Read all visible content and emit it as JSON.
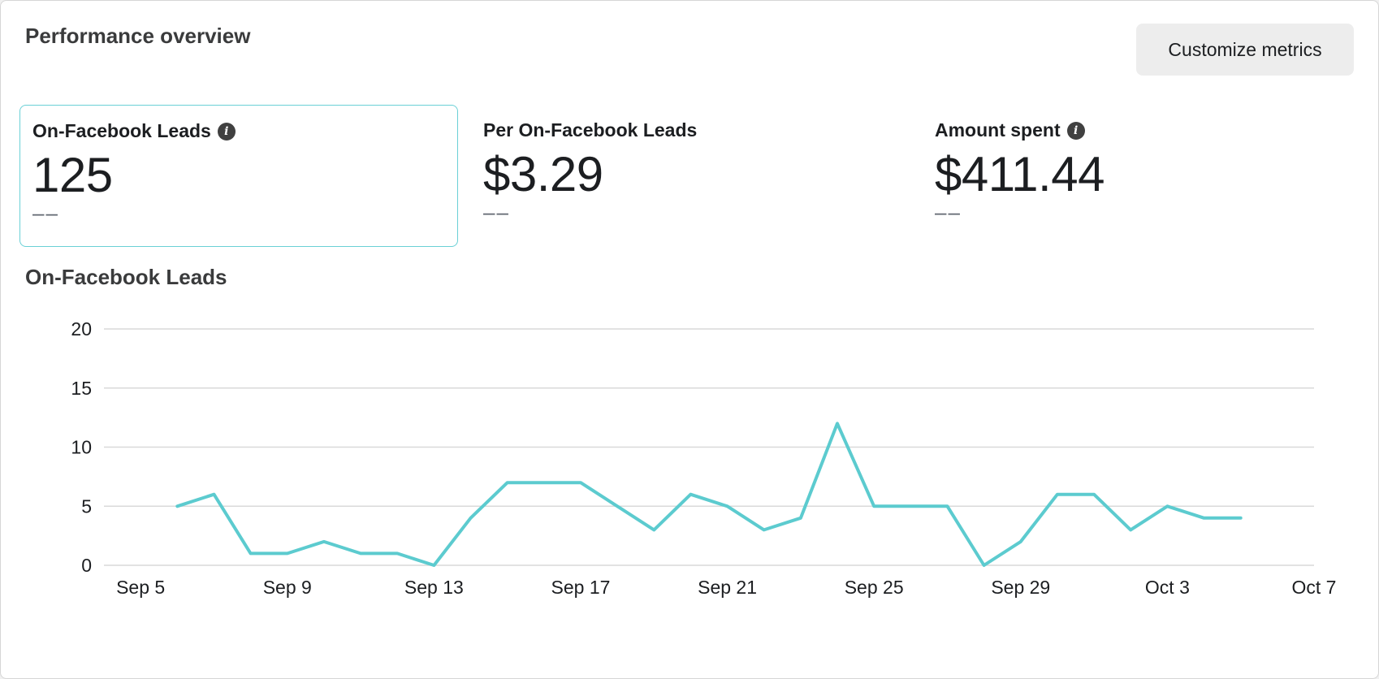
{
  "header": {
    "title": "Performance overview",
    "customize_label": "Customize metrics"
  },
  "metrics": [
    {
      "label": "On-Facebook Leads",
      "value": "125",
      "delta": "––",
      "info_icon": "info-icon",
      "selected": true
    },
    {
      "label": "Per On-Facebook Leads",
      "value": "$3.29",
      "delta": "––",
      "selected": false
    },
    {
      "label": "Amount spent",
      "value": "$411.44",
      "delta": "––",
      "info_icon": "info-icon",
      "selected": false
    }
  ],
  "chart_data": {
    "type": "line",
    "title": "On-Facebook Leads",
    "series_color": "#5ccbcf",
    "ylim": [
      0,
      20
    ],
    "yticks": [
      "0",
      "5",
      "10",
      "15",
      "20"
    ],
    "xtick_labels": [
      "Sep 5",
      "Sep 9",
      "Sep 13",
      "Sep 17",
      "Sep 21",
      "Sep 25",
      "Sep 29",
      "Oct 3",
      "Oct 7"
    ],
    "grid": true,
    "x": [
      "Sep 6",
      "Sep 7",
      "Sep 8",
      "Sep 9",
      "Sep 10",
      "Sep 11",
      "Sep 12",
      "Sep 13",
      "Sep 14",
      "Sep 15",
      "Sep 16",
      "Sep 17",
      "Sep 18",
      "Sep 19",
      "Sep 20",
      "Sep 21",
      "Sep 22",
      "Sep 23",
      "Sep 24",
      "Sep 25",
      "Sep 26",
      "Sep 27",
      "Sep 28",
      "Sep 29",
      "Sep 30",
      "Oct 1",
      "Oct 2",
      "Oct 3",
      "Oct 4",
      "Oct 5"
    ],
    "values": [
      5,
      6,
      1,
      1,
      2,
      1,
      1,
      0,
      4,
      7,
      7,
      7,
      5,
      3,
      6,
      5,
      3,
      4,
      12,
      5,
      5,
      5,
      0,
      2,
      6,
      6,
      3,
      5,
      4,
      4
    ]
  }
}
